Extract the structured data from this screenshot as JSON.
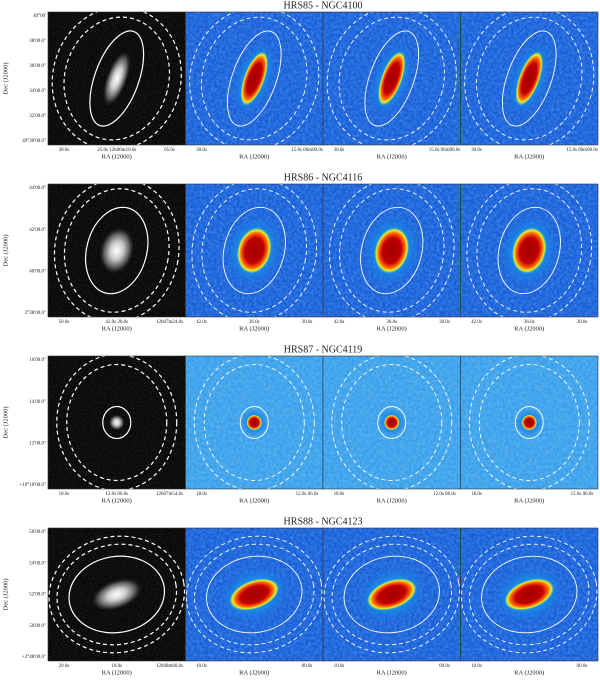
{
  "rows": [
    {
      "title": "HRS85 - NGC4100",
      "y_label": "Dec (J2000)",
      "x_label": "RA (J2000)",
      "yticks": [
        "40°00'",
        "38'00.0\"",
        "36'00.0\"",
        "34'00.0\"",
        "32'00.0\"",
        "49°30'00.0\""
      ],
      "xticks": [
        [
          "30.0s",
          "25.0s 12h06m10.0s",
          "05.0s"
        ],
        [
          "30.0s",
          "15.0s 06m00.0s"
        ],
        [
          "30.0s",
          "15.0s 06m00.0s"
        ],
        [
          "30.0s",
          "15.0s 06m00.0s"
        ]
      ]
    },
    {
      "title": "HRS86 - NGC4116",
      "y_label": "Dec (J2000)",
      "x_label": "RA (J2000)",
      "yticks": [
        "44'00.0\"",
        "42'00.0\"",
        "40'00.0\"",
        "2°38'00.0\""
      ],
      "xticks": [
        [
          "50.0s",
          "42.0s 36.0s",
          "12h07m24.0s"
        ],
        [
          "42.0s",
          "36.0s",
          "30.0s"
        ],
        [
          "42.0s",
          "36.0s",
          "30.0s"
        ],
        [
          "42.0s",
          "36.0s",
          "30.0s"
        ]
      ]
    },
    {
      "title": "HRS87 - NGC4119",
      "y_label": "Dec (J2000)",
      "x_label": "RA (J2000)",
      "yticks": [
        "16'00.0\"",
        "14'00.0\"",
        "12'00.0\"",
        "+10°10'00.0\""
      ],
      "xticks": [
        [
          "18.0s",
          "12.0s 06.0s",
          "12h07m54.0s"
        ],
        [
          "18.0s",
          "12.0s 06.0s"
        ],
        [
          "18.0s",
          "12.0s 06.0s"
        ],
        [
          "18.0s",
          "12.0s 06.0s"
        ]
      ]
    },
    {
      "title": "HRS88 - NGC4123",
      "y_label": "Dec (J2000)",
      "x_label": "RA (J2000)",
      "yticks": [
        "56'00.0\"",
        "54'00.0\"",
        "52'00.0\"",
        "50'00.0\"",
        "+2°48'00.0\""
      ],
      "xticks": [
        [
          "20.0s",
          "10.0s",
          "12h08m00.0s"
        ],
        [
          "10.0s",
          "00.0s"
        ],
        [
          "10.0s",
          "00.0s"
        ],
        [
          "10.0s",
          "00.0s"
        ]
      ]
    }
  ]
}
